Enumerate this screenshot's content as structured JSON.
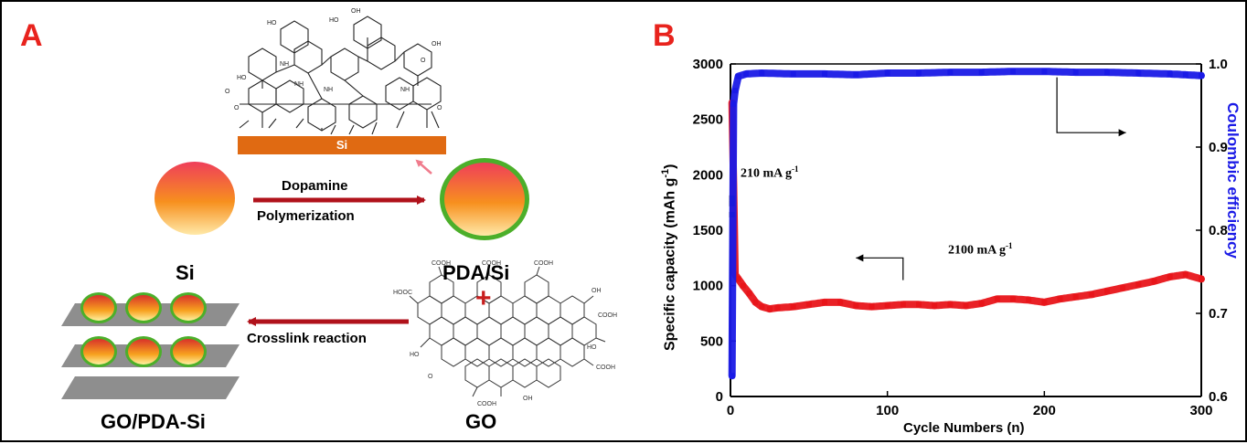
{
  "panel_a": {
    "letter": "A",
    "si_label": "Si",
    "pda_si_label": "PDA/Si",
    "go_pda_si_label": "GO/PDA-Si",
    "go_label": "GO",
    "substrate_label": "Si",
    "arrow1_top": "Dopamine",
    "arrow1_bottom": "Polymerization",
    "arrow2_label": "Crosslink reaction",
    "plus_sign": "+",
    "colors": {
      "arrow": "#b0121b",
      "sphere_top": "#ef3e5a",
      "sphere_bottom": "#ffe9a8",
      "pda_shell": "#4caf2a",
      "substrate": "#e06a12",
      "plus": "#c81e1e"
    }
  },
  "panel_b": {
    "letter": "B",
    "annotation_low_rate": "210 mA g",
    "annotation_high_rate": "2100 mA g",
    "annotation_superscript": "-1"
  },
  "chart_data": {
    "type": "scatter",
    "xlabel": "Cycle Numbers (n)",
    "ylabel": "Specific capacity (mAh g",
    "ylabel_sup": "-1",
    "ylabel_end": ")",
    "y2label": "Coulombic efficiency",
    "xlim": [
      0,
      300
    ],
    "ylim": [
      0,
      3000
    ],
    "y2lim": [
      0.6,
      1.0
    ],
    "x_ticks": [
      0,
      100,
      200,
      300
    ],
    "y_ticks": [
      0,
      500,
      1000,
      1500,
      2000,
      2500,
      3000
    ],
    "y2_ticks": [
      0.6,
      0.7,
      0.8,
      0.9,
      1.0
    ],
    "y2_tick_labels": [
      "0.6",
      "0.7",
      "0.8",
      "0.9",
      "1.0"
    ],
    "series": [
      {
        "color": "#e8151a",
        "axis": "left",
        "x": [
          1,
          2,
          3,
          5,
          8,
          12,
          16,
          20,
          25,
          30,
          40,
          50,
          60,
          70,
          80,
          90,
          100,
          110,
          120,
          130,
          140,
          150,
          160,
          170,
          180,
          190,
          200,
          210,
          220,
          230,
          240,
          250,
          260,
          270,
          280,
          290,
          300
        ],
        "y": [
          2650,
          1920,
          1100,
          1060,
          1000,
          930,
          850,
          810,
          790,
          800,
          810,
          830,
          850,
          850,
          820,
          810,
          820,
          830,
          830,
          820,
          830,
          820,
          840,
          880,
          880,
          870,
          850,
          880,
          900,
          920,
          950,
          980,
          1010,
          1040,
          1080,
          1100,
          1060
        ]
      },
      {
        "color": "#000000",
        "axis": "left",
        "x": [
          1,
          1,
          1
        ],
        "y": [
          1790,
          1740,
          1640
        ]
      },
      {
        "color": "#1a1ae6",
        "axis": "right",
        "x": [
          1,
          2,
          3,
          5,
          10,
          20,
          40,
          60,
          80,
          100,
          120,
          140,
          160,
          180,
          200,
          220,
          240,
          260,
          280,
          290,
          300
        ],
        "y": [
          0.625,
          0.952,
          0.968,
          0.985,
          0.988,
          0.989,
          0.988,
          0.988,
          0.987,
          0.989,
          0.989,
          0.99,
          0.99,
          0.991,
          0.991,
          0.99,
          0.99,
          0.989,
          0.988,
          0.987,
          0.986
        ]
      }
    ],
    "annotation_arrows": [
      {
        "points": [
          [
            110,
            1050
          ],
          [
            110,
            1250
          ],
          [
            80,
            1250
          ]
        ],
        "direction": "left"
      },
      {
        "points": [
          [
            208,
            2880
          ],
          [
            208,
            2380
          ],
          [
            252,
            2380
          ]
        ],
        "direction": "right"
      }
    ]
  }
}
